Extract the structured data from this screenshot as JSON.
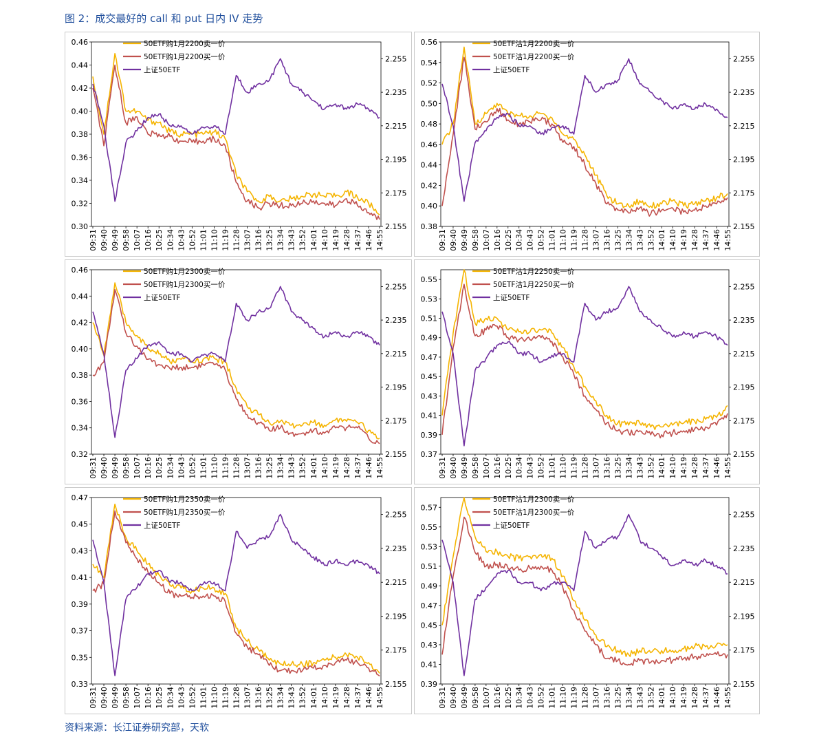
{
  "figure": {
    "title": "图 2：成交最好的 call 和 put 日内 IV 走势",
    "source": "资料来源：长江证券研究部，天软"
  },
  "colors": {
    "sell": "#f5b400",
    "buy": "#c0504d",
    "index": "#7030a0"
  },
  "time_ticks": [
    "09:31",
    "09:40",
    "09:49",
    "09:58",
    "10:07",
    "10:16",
    "10:25",
    "10:34",
    "10:43",
    "10:52",
    "11:01",
    "11:10",
    "11:19",
    "11:28",
    "13:07",
    "13:16",
    "13:25",
    "13:34",
    "13:43",
    "13:52",
    "14:01",
    "14:10",
    "14:19",
    "14:28",
    "14:37",
    "14:46",
    "14:55"
  ],
  "chart_data": [
    {
      "type": "line",
      "legend": [
        "50ETF购1月2200卖一价",
        "50ETF购1月2200买一价",
        "上证50ETF"
      ],
      "left_ticks": [
        "0.46",
        "0.44",
        "0.42",
        "0.40",
        "0.38",
        "0.36",
        "0.34",
        "0.32",
        "0.30"
      ],
      "left_range": [
        0.3,
        0.46
      ],
      "right_ticks": [
        "2.255",
        "2.235",
        "2.215",
        "2.195",
        "2.175",
        "2.155"
      ],
      "right_range": [
        2.155,
        2.265
      ],
      "series": [
        {
          "name": "50ETF购1月2200卖一价",
          "values": [
            0.43,
            0.38,
            0.45,
            0.4,
            0.4,
            0.392,
            0.39,
            0.382,
            0.38,
            0.38,
            0.38,
            0.382,
            0.376,
            0.345,
            0.33,
            0.322,
            0.326,
            0.322,
            0.324,
            0.326,
            0.328,
            0.326,
            0.326,
            0.33,
            0.325,
            0.32,
            0.31
          ]
        },
        {
          "name": "50ETF购1月2200买一价",
          "values": [
            0.42,
            0.37,
            0.44,
            0.39,
            0.395,
            0.38,
            0.38,
            0.378,
            0.374,
            0.373,
            0.374,
            0.376,
            0.37,
            0.338,
            0.322,
            0.316,
            0.32,
            0.318,
            0.318,
            0.32,
            0.322,
            0.32,
            0.318,
            0.324,
            0.318,
            0.312,
            0.306
          ]
        },
        {
          "name": "上证50ETF",
          "values": [
            2.24,
            2.215,
            2.17,
            2.205,
            2.212,
            2.22,
            2.222,
            2.215,
            2.215,
            2.21,
            2.214,
            2.215,
            2.21,
            2.245,
            2.235,
            2.24,
            2.242,
            2.255,
            2.24,
            2.235,
            2.23,
            2.225,
            2.228,
            2.225,
            2.228,
            2.225,
            2.22
          ]
        }
      ]
    },
    {
      "type": "line",
      "legend": [
        "50ETF沽1月2200卖一价",
        "50ETF沽1月2200买一价",
        "上证50ETF"
      ],
      "left_ticks": [
        "0.56",
        "0.54",
        "0.52",
        "0.50",
        "0.48",
        "0.46",
        "0.44",
        "0.42",
        "0.40",
        "0.38"
      ],
      "left_range": [
        0.38,
        0.56
      ],
      "right_ticks": [
        "2.255",
        "2.235",
        "2.215",
        "2.195",
        "2.175",
        "2.155"
      ],
      "right_range": [
        2.155,
        2.265
      ],
      "series": [
        {
          "name": "50ETF沽1月2200卖一价",
          "values": [
            0.46,
            0.48,
            0.555,
            0.48,
            0.49,
            0.5,
            0.49,
            0.488,
            0.488,
            0.49,
            0.486,
            0.47,
            0.465,
            0.45,
            0.43,
            0.41,
            0.402,
            0.4,
            0.405,
            0.4,
            0.402,
            0.405,
            0.4,
            0.402,
            0.405,
            0.408,
            0.412
          ]
        },
        {
          "name": "50ETF沽1月2200买一价",
          "values": [
            0.4,
            0.47,
            0.545,
            0.475,
            0.482,
            0.495,
            0.484,
            0.48,
            0.482,
            0.484,
            0.48,
            0.462,
            0.458,
            0.44,
            0.422,
            0.402,
            0.396,
            0.393,
            0.398,
            0.392,
            0.396,
            0.398,
            0.394,
            0.396,
            0.4,
            0.402,
            0.408
          ]
        },
        {
          "name": "上证50ETF",
          "values": [
            2.24,
            2.215,
            2.17,
            2.205,
            2.212,
            2.22,
            2.222,
            2.215,
            2.215,
            2.21,
            2.214,
            2.215,
            2.21,
            2.245,
            2.235,
            2.24,
            2.242,
            2.255,
            2.24,
            2.235,
            2.23,
            2.225,
            2.228,
            2.225,
            2.228,
            2.225,
            2.22
          ]
        }
      ]
    },
    {
      "type": "line",
      "legend": [
        "50ETF购1月2300卖一价",
        "50ETF购1月2300买一价",
        "上证50ETF"
      ],
      "left_ticks": [
        "0.46",
        "0.44",
        "0.42",
        "0.40",
        "0.38",
        "0.36",
        "0.34",
        "0.32"
      ],
      "left_range": [
        0.32,
        0.46
      ],
      "right_ticks": [
        "2.255",
        "2.235",
        "2.215",
        "2.195",
        "2.175",
        "2.155"
      ],
      "right_range": [
        2.155,
        2.265
      ],
      "series": [
        {
          "name": "50ETF购1月2300卖一价",
          "values": [
            0.42,
            0.395,
            0.45,
            0.42,
            0.41,
            0.4,
            0.396,
            0.39,
            0.392,
            0.39,
            0.392,
            0.393,
            0.39,
            0.37,
            0.356,
            0.35,
            0.344,
            0.345,
            0.342,
            0.342,
            0.344,
            0.342,
            0.346,
            0.345,
            0.344,
            0.338,
            0.332
          ]
        },
        {
          "name": "50ETF购1月2300买一价",
          "values": [
            0.38,
            0.39,
            0.445,
            0.412,
            0.402,
            0.392,
            0.388,
            0.385,
            0.386,
            0.386,
            0.388,
            0.388,
            0.384,
            0.362,
            0.35,
            0.344,
            0.338,
            0.34,
            0.336,
            0.336,
            0.338,
            0.336,
            0.34,
            0.34,
            0.34,
            0.332,
            0.328
          ]
        },
        {
          "name": "上证50ETF",
          "values": [
            2.24,
            2.215,
            2.165,
            2.205,
            2.212,
            2.22,
            2.222,
            2.215,
            2.215,
            2.21,
            2.214,
            2.215,
            2.21,
            2.245,
            2.235,
            2.24,
            2.242,
            2.255,
            2.24,
            2.235,
            2.23,
            2.225,
            2.228,
            2.225,
            2.228,
            2.225,
            2.22
          ]
        }
      ]
    },
    {
      "type": "line",
      "legend": [
        "50ETF沽1月2250卖一价",
        "50ETF沽1月2250买一价",
        "上证50ETF"
      ],
      "left_ticks": [
        "0.55",
        "0.53",
        "0.51",
        "0.49",
        "0.47",
        "0.45",
        "0.43",
        "0.41",
        "0.39",
        "0.37"
      ],
      "left_range": [
        0.37,
        0.56
      ],
      "right_ticks": [
        "2.255",
        "2.235",
        "2.215",
        "2.195",
        "2.175",
        "2.155"
      ],
      "right_range": [
        2.155,
        2.265
      ],
      "series": [
        {
          "name": "50ETF沽1月2250卖一价",
          "values": [
            0.41,
            0.495,
            0.56,
            0.505,
            0.51,
            0.51,
            0.498,
            0.496,
            0.496,
            0.498,
            0.495,
            0.48,
            0.46,
            0.44,
            0.425,
            0.41,
            0.402,
            0.4,
            0.402,
            0.398,
            0.398,
            0.4,
            0.402,
            0.404,
            0.406,
            0.408,
            0.42
          ]
        },
        {
          "name": "50ETF沽1月2250买一价",
          "values": [
            0.39,
            0.48,
            0.545,
            0.492,
            0.498,
            0.502,
            0.49,
            0.488,
            0.488,
            0.49,
            0.486,
            0.47,
            0.452,
            0.43,
            0.416,
            0.402,
            0.394,
            0.392,
            0.394,
            0.39,
            0.39,
            0.392,
            0.394,
            0.396,
            0.398,
            0.4,
            0.412
          ]
        },
        {
          "name": "上证50ETF",
          "values": [
            2.24,
            2.215,
            2.16,
            2.205,
            2.212,
            2.22,
            2.222,
            2.215,
            2.215,
            2.21,
            2.214,
            2.215,
            2.21,
            2.245,
            2.235,
            2.24,
            2.242,
            2.255,
            2.24,
            2.235,
            2.23,
            2.225,
            2.228,
            2.225,
            2.228,
            2.225,
            2.22
          ]
        }
      ]
    },
    {
      "type": "line",
      "legend": [
        "50ETF购1月2350卖一价",
        "50ETF购1月2350买一价",
        "上证50ETF"
      ],
      "left_ticks": [
        "0.47",
        "0.45",
        "0.43",
        "0.41",
        "0.39",
        "0.37",
        "0.35",
        "0.33"
      ],
      "left_range": [
        0.33,
        0.47
      ],
      "right_ticks": [
        "2.255",
        "2.235",
        "2.215",
        "2.195",
        "2.175",
        "2.155"
      ],
      "right_range": [
        2.155,
        2.265
      ],
      "series": [
        {
          "name": "50ETF购1月2350卖一价",
          "values": [
            0.42,
            0.41,
            0.465,
            0.44,
            0.43,
            0.42,
            0.412,
            0.404,
            0.402,
            0.4,
            0.402,
            0.402,
            0.398,
            0.372,
            0.362,
            0.356,
            0.348,
            0.345,
            0.345,
            0.345,
            0.346,
            0.348,
            0.35,
            0.352,
            0.35,
            0.346,
            0.338
          ]
        },
        {
          "name": "50ETF购1月2350买一价",
          "values": [
            0.4,
            0.405,
            0.46,
            0.436,
            0.424,
            0.414,
            0.406,
            0.398,
            0.396,
            0.395,
            0.396,
            0.396,
            0.392,
            0.368,
            0.358,
            0.352,
            0.344,
            0.34,
            0.34,
            0.34,
            0.342,
            0.344,
            0.346,
            0.348,
            0.346,
            0.342,
            0.336
          ]
        },
        {
          "name": "上证50ETF",
          "values": [
            2.24,
            2.215,
            2.16,
            2.205,
            2.212,
            2.22,
            2.222,
            2.215,
            2.215,
            2.21,
            2.214,
            2.215,
            2.21,
            2.245,
            2.235,
            2.24,
            2.242,
            2.255,
            2.24,
            2.235,
            2.23,
            2.225,
            2.228,
            2.225,
            2.228,
            2.225,
            2.22
          ]
        }
      ]
    },
    {
      "type": "line",
      "legend": [
        "50ETF沽1月2300卖一价",
        "50ETF沽1月2300买一价",
        "上证50ETF"
      ],
      "left_ticks": [
        "0.57",
        "0.55",
        "0.53",
        "0.51",
        "0.49",
        "0.47",
        "0.45",
        "0.43",
        "0.41",
        "0.39"
      ],
      "left_range": [
        0.39,
        0.58
      ],
      "right_ticks": [
        "2.255",
        "2.235",
        "2.215",
        "2.195",
        "2.175",
        "2.155"
      ],
      "right_range": [
        2.155,
        2.265
      ],
      "series": [
        {
          "name": "50ETF沽1月2300卖一价",
          "values": [
            0.45,
            0.52,
            0.58,
            0.54,
            0.525,
            0.525,
            0.52,
            0.518,
            0.52,
            0.522,
            0.518,
            0.5,
            0.475,
            0.455,
            0.44,
            0.428,
            0.424,
            0.42,
            0.424,
            0.422,
            0.424,
            0.424,
            0.426,
            0.428,
            0.428,
            0.43,
            0.43
          ]
        },
        {
          "name": "50ETF沽1月2300买一价",
          "values": [
            0.42,
            0.5,
            0.56,
            0.524,
            0.51,
            0.512,
            0.508,
            0.506,
            0.508,
            0.51,
            0.506,
            0.488,
            0.465,
            0.444,
            0.43,
            0.416,
            0.414,
            0.41,
            0.414,
            0.412,
            0.414,
            0.414,
            0.416,
            0.418,
            0.418,
            0.42,
            0.42
          ]
        },
        {
          "name": "上证50ETF",
          "values": [
            2.24,
            2.215,
            2.16,
            2.205,
            2.212,
            2.22,
            2.222,
            2.215,
            2.215,
            2.21,
            2.214,
            2.215,
            2.21,
            2.245,
            2.235,
            2.24,
            2.242,
            2.255,
            2.24,
            2.235,
            2.23,
            2.225,
            2.228,
            2.225,
            2.228,
            2.225,
            2.22
          ]
        }
      ]
    }
  ]
}
